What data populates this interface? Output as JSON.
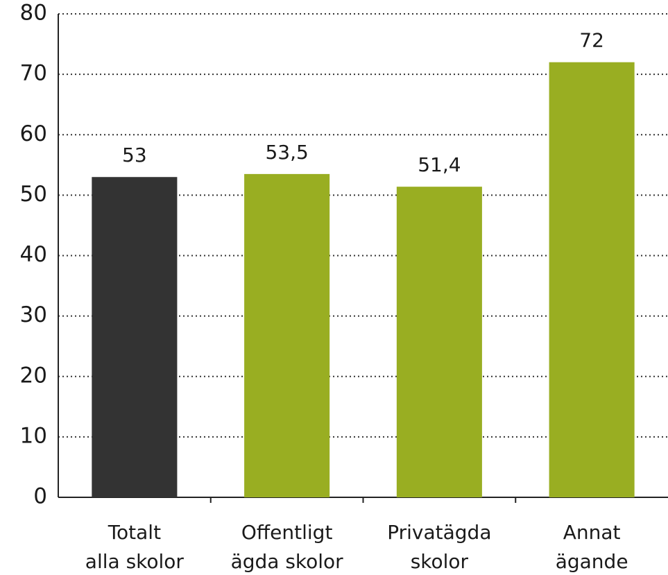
{
  "chart_data": {
    "type": "bar",
    "categories": [
      "Totalt\nalla skolor",
      "Offentligt\nägda skolor",
      "Privatägda\nskolor",
      "Annat\nägande"
    ],
    "values": [
      53,
      53.5,
      51.4,
      72
    ],
    "value_labels": [
      "53",
      "53,5",
      "51,4",
      "72"
    ],
    "colors": [
      "#333333",
      "#99ae22",
      "#99ae22",
      "#99ae22"
    ],
    "ylim": [
      0,
      80
    ],
    "yticks": [
      0,
      10,
      20,
      30,
      40,
      50,
      60,
      70,
      80
    ],
    "grid": true
  }
}
